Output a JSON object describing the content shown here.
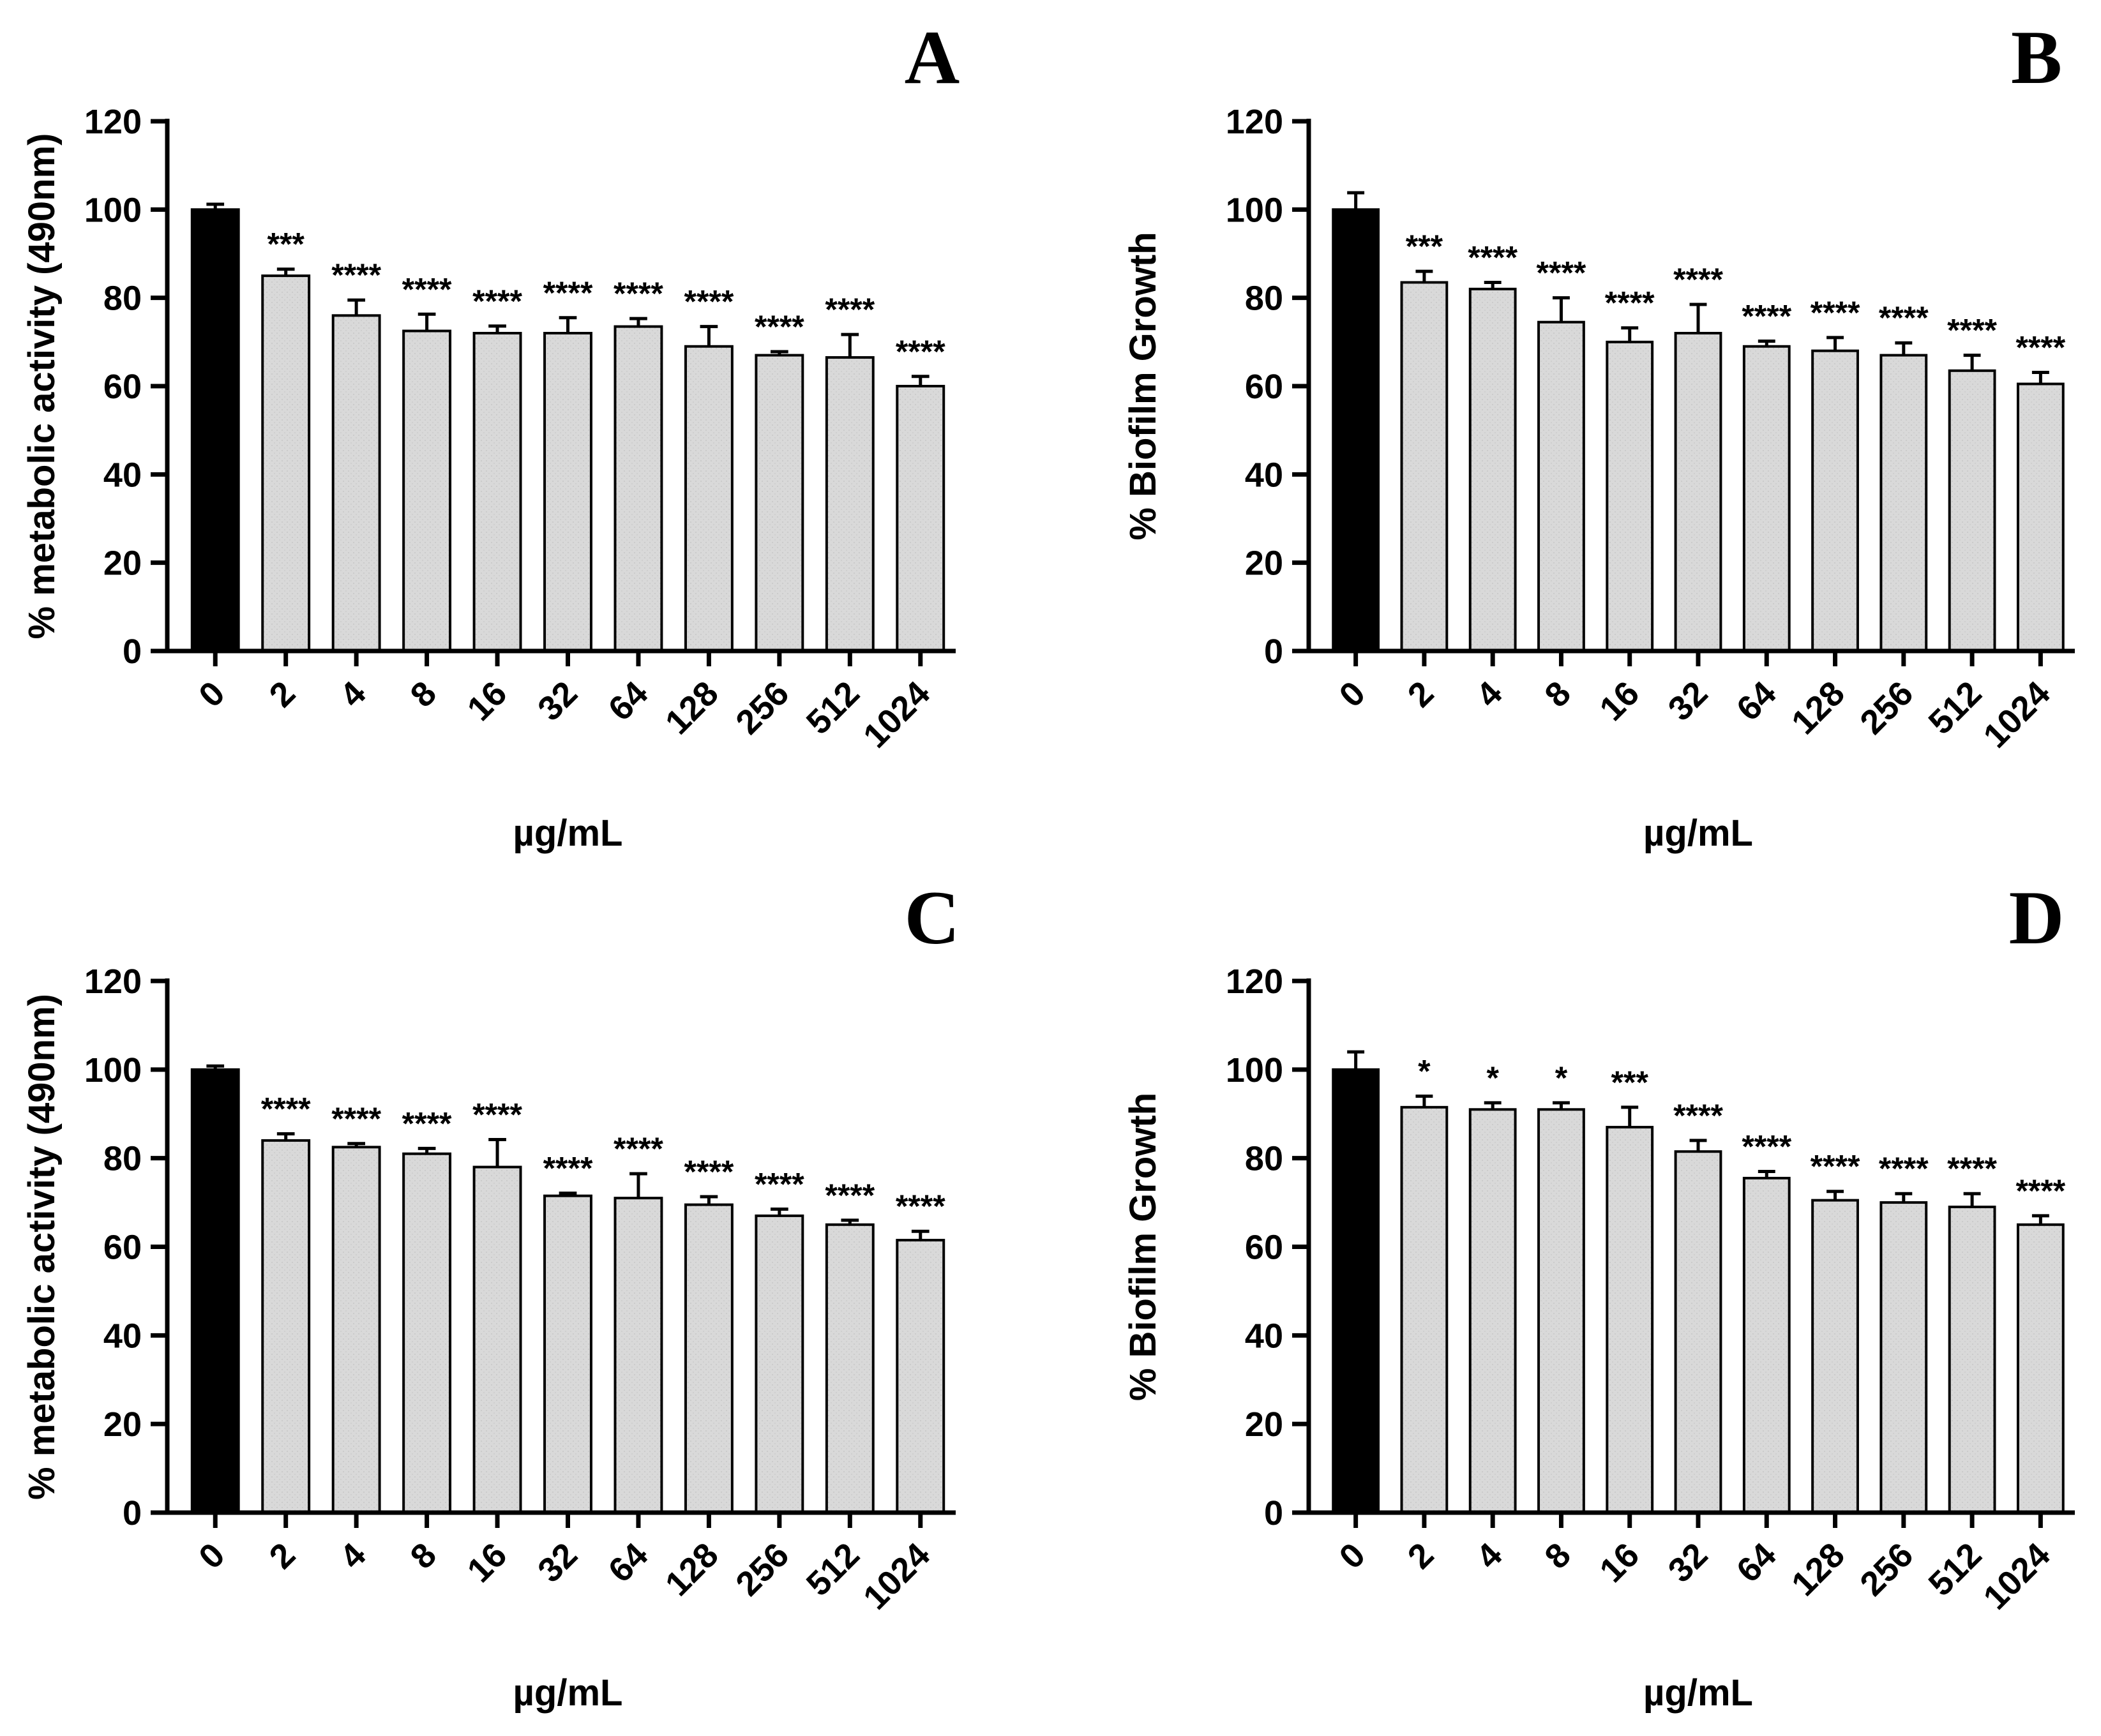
{
  "chart_data": [
    {
      "type": "bar",
      "panel": "A",
      "title": "",
      "xlabel": "µg/mL",
      "ylabel": "% metabolic activity (490nm)",
      "ylim": [
        0,
        120
      ],
      "yticks": [
        "0",
        "20",
        "40",
        "60",
        "80",
        "100",
        "120"
      ],
      "categories": [
        "0",
        "2",
        "4",
        "8",
        "16",
        "32",
        "64",
        "128",
        "256",
        "512",
        "1024"
      ],
      "values": [
        100,
        85,
        76,
        72.5,
        72,
        72,
        73.5,
        69,
        67,
        66.5,
        60
      ],
      "errors": [
        1.2,
        1.5,
        3.5,
        3.8,
        1.6,
        3.5,
        1.8,
        4.5,
        0.8,
        5.2,
        2.2
      ],
      "significance": [
        "",
        "***",
        "****",
        "****",
        "****",
        "****",
        "****",
        "****",
        "****",
        "****",
        "****"
      ],
      "colors": {
        "control": "#000000",
        "treated": "#d9d9d9"
      }
    },
    {
      "type": "bar",
      "panel": "B",
      "title": "",
      "xlabel": "µg/mL",
      "ylabel": "% Biofilm Growth",
      "ylim": [
        0,
        120
      ],
      "yticks": [
        "0",
        "20",
        "40",
        "60",
        "80",
        "100",
        "120"
      ],
      "categories": [
        "0",
        "2",
        "4",
        "8",
        "16",
        "32",
        "64",
        "128",
        "256",
        "512",
        "1024"
      ],
      "values": [
        100,
        83.5,
        82,
        74.5,
        70,
        72,
        69,
        68,
        67,
        63.5,
        60.5
      ],
      "errors": [
        3.8,
        2.5,
        1.5,
        5.5,
        3.2,
        6.5,
        1.2,
        3.0,
        2.8,
        3.5,
        2.6
      ],
      "significance": [
        "",
        "***",
        "****",
        "****",
        "****",
        "****",
        "****",
        "****",
        "****",
        "****",
        "****"
      ],
      "colors": {
        "control": "#000000",
        "treated": "#d9d9d9"
      }
    },
    {
      "type": "bar",
      "panel": "C",
      "title": "",
      "xlabel": "µg/mL",
      "ylabel": "% metabolic activity (490nm)",
      "ylim": [
        0,
        120
      ],
      "yticks": [
        "0",
        "20",
        "40",
        "60",
        "80",
        "100",
        "120"
      ],
      "categories": [
        "0",
        "2",
        "4",
        "8",
        "16",
        "32",
        "64",
        "128",
        "256",
        "512",
        "1024"
      ],
      "values": [
        100,
        84,
        82.5,
        81,
        78,
        71.5,
        71,
        69.5,
        67,
        65,
        61.5
      ],
      "errors": [
        0.8,
        1.5,
        0.8,
        1.2,
        6.2,
        0.6,
        5.5,
        1.8,
        1.5,
        1.0,
        2.0
      ],
      "significance": [
        "",
        "****",
        "****",
        "****",
        "****",
        "****",
        "****",
        "****",
        "****",
        "****",
        "****"
      ],
      "colors": {
        "control": "#000000",
        "treated": "#d9d9d9"
      }
    },
    {
      "type": "bar",
      "panel": "D",
      "title": "",
      "xlabel": "µg/mL",
      "ylabel": "% Biofilm Growth",
      "ylim": [
        0,
        120
      ],
      "yticks": [
        "0",
        "20",
        "40",
        "60",
        "80",
        "100",
        "120"
      ],
      "categories": [
        "0",
        "2",
        "4",
        "8",
        "16",
        "32",
        "64",
        "128",
        "256",
        "512",
        "1024"
      ],
      "values": [
        100,
        91.5,
        91,
        91,
        87,
        81.5,
        75.5,
        70.5,
        70,
        69,
        65
      ],
      "errors": [
        4.0,
        2.5,
        1.5,
        1.5,
        4.5,
        2.5,
        1.5,
        2.0,
        2.0,
        3.0,
        2.0
      ],
      "significance": [
        "",
        "*",
        "*",
        "*",
        "***",
        "****",
        "****",
        "****",
        "****",
        "****",
        "****"
      ],
      "colors": {
        "control": "#000000",
        "treated": "#d9d9d9"
      }
    }
  ]
}
